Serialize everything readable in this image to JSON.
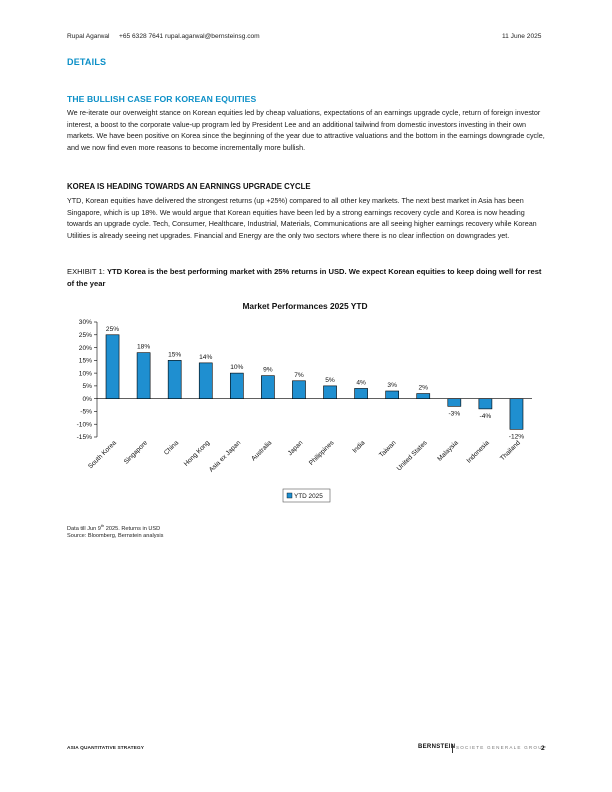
{
  "header": {
    "author": "Rupal Agarwal",
    "contact": "+65 6328 7641 rupal.agarwal@bernsteinsg.com",
    "date": "11 June 2025"
  },
  "section_label": "DETAILS",
  "section_title": "THE BULLISH CASE FOR KOREAN EQUITIES",
  "intro_paragraph": "We re-iterate our overweight stance on Korean equities led by cheap valuations, expectations of an earnings upgrade cycle, return of foreign investor interest, a boost to the corporate value-up program led by President Lee and an additional tailwind from domestic investors investing in their own markets. We have been positive on Korea since the beginning of the year due to attractive valuations and the bottom in the earnings downgrade cycle, and we now find even more reasons to become incrementally more bullish.",
  "subheading": "KOREA IS HEADING TOWARDS AN EARNINGS UPGRADE CYCLE",
  "body_paragraph": "YTD, Korean equities have delivered the strongest returns (up +25%) compared to all other key markets. The next best market in Asia has been Singapore, which is up 18%. We would argue that Korean equities have been led by a strong earnings recovery cycle and Korea is now heading towards an upgrade cycle. Tech, Consumer, Healthcare, Industrial, Materials, Communications are all seeing higher earnings recovery while Korean Utilities is already seeing net upgrades. Financial and Energy are the only two sectors where there is no clear inflection on downgrades yet.",
  "exhibit": {
    "label": "EXHIBIT 1:",
    "caption": "YTD Korea is the best performing market with 25% returns in USD. We expect Korean equities to keep doing well for rest of the year"
  },
  "notes": {
    "line1_pre": "Data till Jun 9",
    "line1_sup": "th",
    "line1_post": " 2025. Returns in USD",
    "source": "Source: Bloomberg, Bernstein analysis"
  },
  "footer": {
    "left": "ASIA QUANTITATIVE STRATEGY",
    "brand": "BERNSTEIN",
    "brand_sub": "SOCIETE GENERALE GROUP",
    "page": "2"
  },
  "chart_data": {
    "type": "bar",
    "title": "Market Performances 2025 YTD",
    "categories": [
      "South Korea",
      "Singapore",
      "China",
      "Hong Kong",
      "Asia ex Japan",
      "Australia",
      "Japan",
      "Philippines",
      "India",
      "Taiwan",
      "United States",
      "Malaysia",
      "Indonesia",
      "Thailand"
    ],
    "series": [
      {
        "name": "YTD 2025",
        "values": [
          25,
          18,
          15,
          14,
          10,
          9,
          7,
          5,
          4,
          3,
          2,
          -3,
          -4,
          -12
        ]
      }
    ],
    "value_labels": [
      "25%",
      "18%",
      "15%",
      "14%",
      "10%",
      "9%",
      "7%",
      "5%",
      "4%",
      "3%",
      "2%",
      "-3%",
      "-4%",
      "-12%"
    ],
    "yticks": [
      30,
      25,
      20,
      15,
      10,
      5,
      0,
      -5,
      -10,
      -15
    ],
    "ytick_labels": [
      "30%",
      "25%",
      "20%",
      "15%",
      "10%",
      "5%",
      "0%",
      "-5%",
      "-10%",
      "-15%"
    ],
    "ylim": [
      -15,
      30
    ],
    "grid": false,
    "legend_position": "bottom-center",
    "bar_color": "#1f8fd0"
  }
}
